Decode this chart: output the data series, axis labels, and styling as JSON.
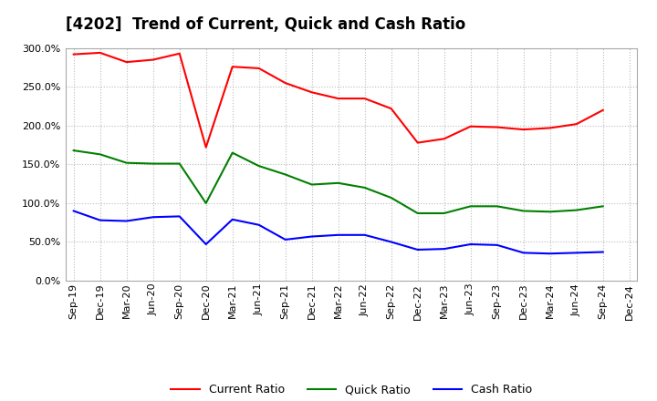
{
  "title": "[4202]  Trend of Current, Quick and Cash Ratio",
  "x_labels": [
    "Sep-19",
    "Dec-19",
    "Mar-20",
    "Jun-20",
    "Sep-20",
    "Dec-20",
    "Mar-21",
    "Jun-21",
    "Sep-21",
    "Dec-21",
    "Mar-22",
    "Jun-22",
    "Sep-22",
    "Dec-22",
    "Mar-23",
    "Jun-23",
    "Sep-23",
    "Dec-23",
    "Mar-24",
    "Jun-24",
    "Sep-24",
    "Dec-24"
  ],
  "current_ratio": [
    292,
    294,
    282,
    285,
    293,
    172,
    276,
    274,
    255,
    243,
    235,
    235,
    222,
    178,
    183,
    199,
    198,
    195,
    197,
    202,
    220,
    null
  ],
  "quick_ratio": [
    168,
    163,
    152,
    151,
    151,
    100,
    165,
    148,
    137,
    124,
    126,
    120,
    107,
    87,
    87,
    96,
    96,
    90,
    89,
    91,
    96,
    null
  ],
  "cash_ratio": [
    90,
    78,
    77,
    82,
    83,
    47,
    79,
    72,
    53,
    57,
    59,
    59,
    50,
    40,
    41,
    47,
    46,
    36,
    35,
    36,
    37,
    null
  ],
  "ylim": [
    0,
    300
  ],
  "yticks": [
    0,
    50,
    100,
    150,
    200,
    250,
    300
  ],
  "current_color": "#FF0000",
  "quick_color": "#008000",
  "cash_color": "#0000FF",
  "bg_color": "#FFFFFF",
  "plot_bg_color": "#FFFFFF",
  "grid_color": "#BBBBBB",
  "title_fontsize": 12,
  "label_fontsize": 8,
  "legend_fontsize": 9
}
